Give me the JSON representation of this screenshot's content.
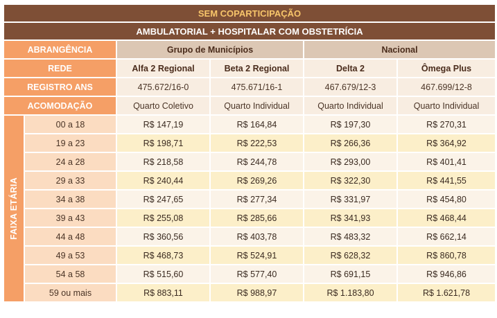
{
  "title": "SEM COPARTICIPAÇÃO",
  "subtitle": "AMBULATORIAL + HOSPITALAR COM OBSTETRÍCIA",
  "labels": {
    "abrangencia": "ABRANGÊNCIA",
    "rede": "REDE",
    "registro": "REGISTRO ANS",
    "acomodacao": "ACOMODAÇÃO",
    "faixa": "FAIXA ETÁRIA"
  },
  "groups": [
    "Grupo de Municípios",
    "Nacional"
  ],
  "plans": [
    {
      "rede": "Alfa 2 Regional",
      "registro": "475.672/16-0",
      "acomodacao": "Quarto Coletivo"
    },
    {
      "rede": "Beta 2 Regional",
      "registro": "475.671/16-1",
      "acomodacao": "Quarto Individual"
    },
    {
      "rede": "Delta 2",
      "registro": "467.679/12-3",
      "acomodacao": "Quarto Individual"
    },
    {
      "rede": "Ômega Plus",
      "registro": "467.699/12-8",
      "acomodacao": "Quarto Individual"
    }
  ],
  "rows": [
    {
      "age": "00 a 18",
      "prices": [
        "R$ 147,19",
        "R$ 164,84",
        "R$ 197,30",
        "R$ 270,31"
      ]
    },
    {
      "age": "19 a 23",
      "prices": [
        "R$ 198,71",
        "R$ 222,53",
        "R$ 266,36",
        "R$ 364,92"
      ]
    },
    {
      "age": "24 a 28",
      "prices": [
        "R$ 218,58",
        "R$ 244,78",
        "R$ 293,00",
        "R$ 401,41"
      ]
    },
    {
      "age": "29 a 33",
      "prices": [
        "R$ 240,44",
        "R$ 269,26",
        "R$ 322,30",
        "R$ 441,55"
      ]
    },
    {
      "age": "34 a 38",
      "prices": [
        "R$ 247,65",
        "R$ 277,34",
        "R$ 331,97",
        "R$ 454,80"
      ]
    },
    {
      "age": "39 a 43",
      "prices": [
        "R$ 255,08",
        "R$ 285,66",
        "R$ 341,93",
        "R$ 468,44"
      ]
    },
    {
      "age": "44 a 48",
      "prices": [
        "R$ 360,56",
        "R$ 403,78",
        "R$ 483,32",
        "R$ 662,14"
      ]
    },
    {
      "age": "49 a 53",
      "prices": [
        "R$ 468,73",
        "R$ 524,91",
        "R$ 628,32",
        "R$ 860,78"
      ]
    },
    {
      "age": "54 a 58",
      "prices": [
        "R$ 515,60",
        "R$ 577,40",
        "R$ 691,15",
        "R$ 946,86"
      ]
    },
    {
      "age": "59 ou mais",
      "prices": [
        "R$ 883,11",
        "R$ 988,97",
        "R$ 1.183,80",
        "R$ 1.621,78"
      ]
    }
  ]
}
